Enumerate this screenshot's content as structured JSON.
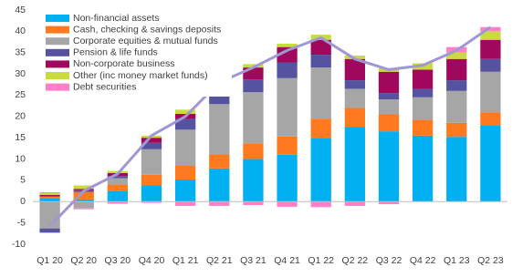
{
  "chart_data": {
    "type": "stacked-bar-line",
    "categories": [
      "Q1 20",
      "Q2 20",
      "Q3 20",
      "Q4 20",
      "Q1 21",
      "Q2 21",
      "Q3 21",
      "Q4 21",
      "Q1 22",
      "Q2 22",
      "Q3 22",
      "Q4 22",
      "Q1 23",
      "Q2 23"
    ],
    "series": [
      {
        "name": "Non-financial assets",
        "color": "#00b0f0",
        "values": [
          0.8,
          0.5,
          2.5,
          3.8,
          5.2,
          7.8,
          10,
          11,
          15,
          17.5,
          16.5,
          15.5,
          15.2,
          18
        ]
      },
      {
        "name": "Cash, checking & savings deposits",
        "color": "#ff7a1f",
        "values": [
          0.4,
          1.8,
          1.5,
          2.5,
          3.2,
          3.3,
          3.7,
          4.3,
          4.5,
          4.5,
          4,
          3.7,
          3.3,
          3
        ]
      },
      {
        "name": "Corporate equities & mutual funds",
        "color": "#a6a6a6",
        "values": [
          -6.3,
          -1.6,
          1.5,
          6,
          8.5,
          11.8,
          12,
          13.7,
          12,
          4.5,
          3.5,
          5.3,
          7.5,
          9.5
        ]
      },
      {
        "name": "Pension & life funds",
        "color": "#5552a0",
        "values": [
          -1,
          0.4,
          0.5,
          1.5,
          2.5,
          2.8,
          3,
          3.7,
          3,
          2,
          1.5,
          2,
          2.5,
          3
        ]
      },
      {
        "name": "Non-corporate business",
        "color": "#a0085e",
        "values": [
          0.4,
          0.3,
          0.7,
          1.2,
          1.2,
          2.5,
          2.8,
          3.6,
          3.5,
          5,
          5,
          4.5,
          5,
          4.5
        ]
      },
      {
        "name": "Other (inc money market funds)",
        "color": "#c9dc3c",
        "values": [
          0.4,
          0.8,
          0.5,
          0.5,
          1,
          0.8,
          0.8,
          0.8,
          1.2,
          0.8,
          0.8,
          1.5,
          1.5,
          2
        ]
      },
      {
        "name": "Debt securities",
        "color": "#ff80c8",
        "values": [
          0.2,
          -0.2,
          -0.5,
          -0.3,
          -1,
          -1,
          -0.8,
          -1.2,
          -1.3,
          -1,
          -0.6,
          0,
          1.3,
          1
        ]
      }
    ],
    "line": {
      "color": "#9e98d4",
      "values": [
        -5.8,
        2.5,
        6.5,
        15.5,
        20,
        28,
        31.5,
        35.5,
        38.5,
        33.5,
        31,
        32,
        35.5,
        41
      ]
    },
    "ylim": [
      -10,
      45
    ],
    "yticks": [
      -10,
      -5,
      0,
      5,
      10,
      15,
      20,
      25,
      30,
      35,
      40,
      45
    ],
    "grid": false
  }
}
